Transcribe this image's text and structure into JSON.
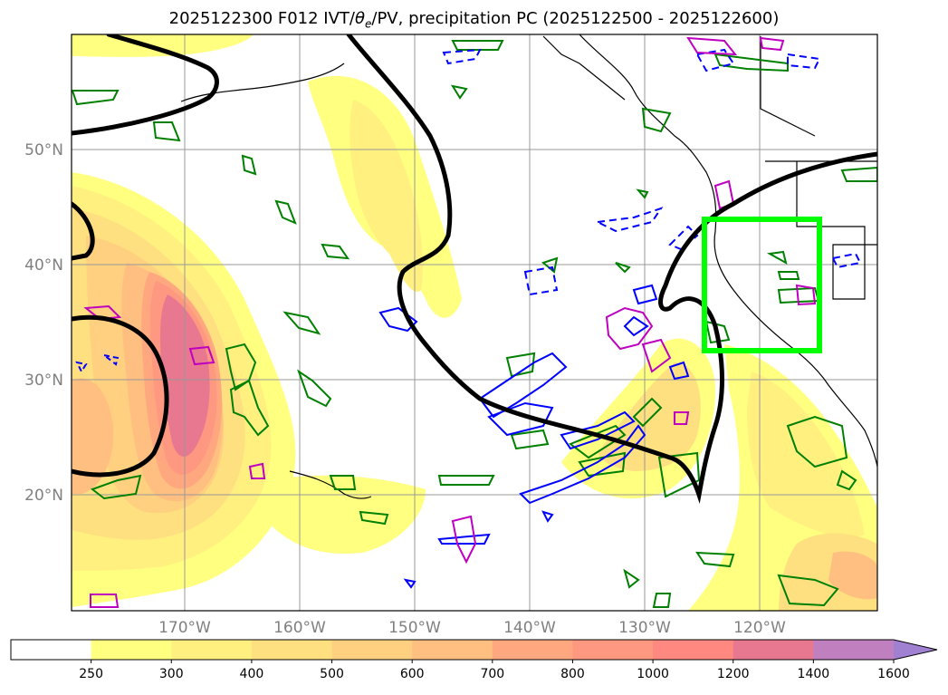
{
  "title": {
    "prefix": "2025122300 F012 IVT/",
    "theta": "θ",
    "theta_sub": "e",
    "suffix": "/PV, precipitation PC (2025122500 - 2025122600)"
  },
  "map": {
    "lat_labels": [
      "50°N",
      "40°N",
      "30°N",
      "20°N"
    ],
    "lon_labels": [
      "170°W",
      "160°W",
      "150°W",
      "140°W",
      "130°W",
      "120°W"
    ],
    "highlight_box_color": "#00ff00",
    "contour_colors": {
      "pv_line": "#000000",
      "theta_e_green": "#008000",
      "blue_contours": "#0000ff",
      "magenta_contours": "#bf00bf"
    }
  },
  "colorbar": {
    "ticks": [
      "250",
      "300",
      "400",
      "500",
      "600",
      "700",
      "800",
      "1000",
      "1200",
      "1400",
      "1600"
    ],
    "colors": [
      "#ffffff",
      "#ffff80",
      "#fff080",
      "#ffe080",
      "#ffd080",
      "#ffbf80",
      "#ffa880",
      "#ff9880",
      "#ff8880",
      "#e87890",
      "#c080c0",
      "#a080d0"
    ],
    "extend": "max"
  }
}
